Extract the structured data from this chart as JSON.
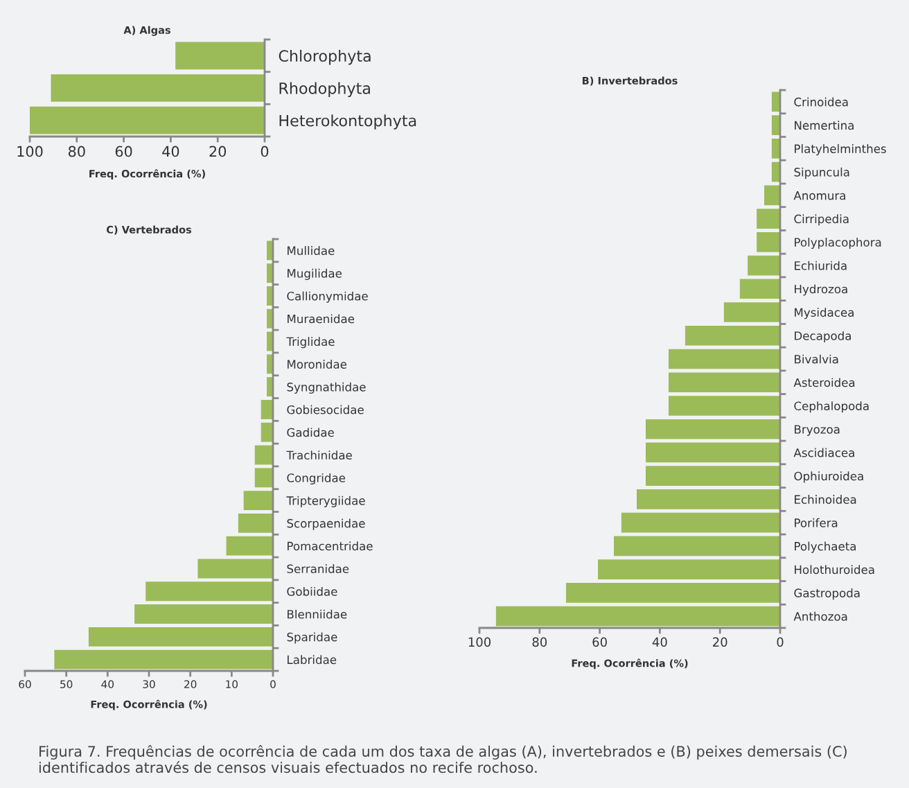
{
  "chart_data": [
    {
      "type": "bar",
      "orientation": "horizontal",
      "title": "A) Algas",
      "xlabel": "Freq. Ocorrência (%)",
      "categories": [
        "Chlorophyta",
        "Rhodophyta",
        "Heterokontophyta"
      ],
      "values": [
        38,
        91,
        100
      ],
      "color": "#9bbb59",
      "xlim": [
        100,
        0
      ],
      "xticks": [
        100,
        80,
        60,
        40,
        20,
        0
      ],
      "grid": false,
      "legend": false
    },
    {
      "type": "bar",
      "orientation": "horizontal",
      "title": "B) Invertebrados",
      "xlabel": "Freq. Ocorrência (%)",
      "categories": [
        "Crinoidea",
        "Nemertina",
        "Platyhelminthes",
        "Sipuncula",
        "Anomura",
        "Cirripedia",
        "Polyplacophora",
        "Echiurida",
        "Hydrozoa",
        "Mysidacea",
        "Decapoda",
        "Bivalvia",
        "Asteroidea",
        "Cephalopoda",
        "Bryozoa",
        "Ascidiacea",
        "Ophiuroidea",
        "Echinoidea",
        "Porifera",
        "Polychaeta",
        "Holothuroidea",
        "Gastropoda",
        "Anthozoa"
      ],
      "values": [
        2.8,
        2.8,
        2.8,
        2.8,
        5.3,
        7.8,
        7.8,
        10.8,
        13.4,
        18.7,
        31.6,
        37.1,
        37.1,
        37.1,
        44.7,
        44.7,
        44.7,
        47.7,
        52.8,
        55.3,
        60.6,
        71.2,
        94.5
      ],
      "color": "#9bbb59",
      "xlim": [
        100,
        0
      ],
      "xticks": [
        100,
        80,
        60,
        40,
        20,
        0
      ],
      "grid": false,
      "legend": false
    },
    {
      "type": "bar",
      "orientation": "horizontal",
      "title": "C) Vertebrados",
      "xlabel": "Freq. Ocorrência (%)",
      "categories": [
        "Mullidae",
        "Mugilidae",
        "Callionymidae",
        "Muraenidae",
        "Triglidae",
        "Moronidae",
        "Syngnathidae",
        "Gobiesocidae",
        "Gadidae",
        "Trachinidae",
        "Congridae",
        "Tripterygiidae",
        "Scorpaenidae",
        "Pomacentridae",
        "Serranidae",
        "Gobiidae",
        "Blenniidae",
        "Sparidae",
        "Labridae"
      ],
      "values": [
        1.5,
        1.5,
        1.5,
        1.5,
        1.5,
        1.5,
        1.5,
        2.9,
        2.9,
        4.4,
        4.4,
        7.1,
        8.4,
        11.3,
        18.2,
        30.8,
        33.5,
        44.6,
        52.9
      ],
      "color": "#9bbb59",
      "xlim": [
        60,
        0
      ],
      "xticks": [
        60,
        50,
        40,
        30,
        20,
        10,
        0
      ],
      "grid": false,
      "legend": false,
      "annotations": [
        "Figura 7. Frequências de ocorrência de cada um dos taxa de algas (A), invertebrados e (B) peixes demersais (C) identificados através de censos visuais efectuados no recife rochoso."
      ]
    }
  ]
}
